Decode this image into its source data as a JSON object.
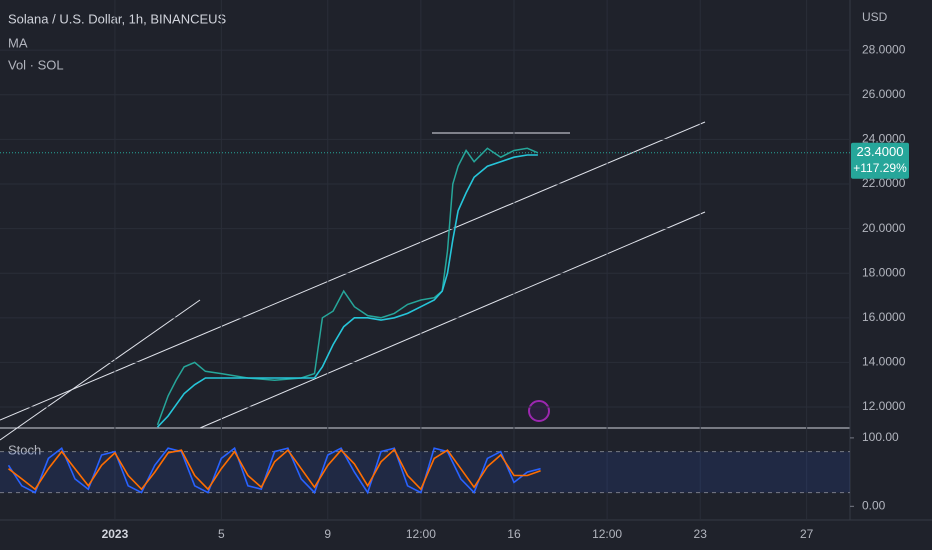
{
  "chart_data": [
    {
      "type": "line",
      "title": "Solana / U.S. Dollar, 1h, BINANCEUS",
      "indicators": [
        "MA",
        "Vol · SOL"
      ],
      "axis_label": "USD",
      "x": [
        1.6,
        2.0,
        2.3,
        2.6,
        3.0,
        3.4,
        4.0,
        5.0,
        6.0,
        7.0,
        7.5,
        7.8,
        8.2,
        8.6,
        9.0,
        9.5,
        10.0,
        10.5,
        11.0,
        11.5,
        12.0,
        12.3,
        12.5,
        12.7,
        12.9,
        13.2,
        13.5,
        14.0,
        14.5,
        15.0,
        15.5,
        15.9
      ],
      "series": [
        {
          "color": "#26a69a",
          "values": [
            11.2,
            12.5,
            13.2,
            13.8,
            14.0,
            13.6,
            13.5,
            13.3,
            13.2,
            13.3,
            13.5,
            16.0,
            16.3,
            17.2,
            16.5,
            16.1,
            16.0,
            16.2,
            16.6,
            16.8,
            16.9,
            17.2,
            19.0,
            22.0,
            22.8,
            23.5,
            23.0,
            23.6,
            23.2,
            23.5,
            23.6,
            23.4
          ]
        },
        {
          "name": "MA",
          "color": "#26c6da",
          "values": [
            11.1,
            11.6,
            12.1,
            12.6,
            13.0,
            13.3,
            13.3,
            13.3,
            13.3,
            13.3,
            13.3,
            13.8,
            14.8,
            15.6,
            16.0,
            16.0,
            15.9,
            16.0,
            16.2,
            16.5,
            16.8,
            17.2,
            18.0,
            19.5,
            20.8,
            21.6,
            22.3,
            22.8,
            23.0,
            23.2,
            23.3,
            23.3
          ]
        }
      ],
      "last_price": {
        "value": 23.4,
        "label": "23.4000"
      },
      "change_label": "+117.29%",
      "xlim": [
        -4.32,
        27.63
      ],
      "xticks": [
        {
          "value": 0,
          "label": "2023"
        },
        {
          "value": 4,
          "label": "5"
        },
        {
          "value": 8,
          "label": "9"
        },
        {
          "value": 11.5,
          "label": "12:00"
        },
        {
          "value": 15,
          "label": "16"
        },
        {
          "value": 18.5,
          "label": "12:00"
        },
        {
          "value": 22,
          "label": "23"
        },
        {
          "value": 26,
          "label": "27"
        }
      ],
      "ylim": [
        11.06,
        30.25
      ],
      "yticks": [
        {
          "value": 12,
          "label": "12.0000"
        },
        {
          "value": 14,
          "label": "14.0000"
        },
        {
          "value": 16,
          "label": "16.0000"
        },
        {
          "value": 18,
          "label": "18.0000"
        },
        {
          "value": 20,
          "label": "20.0000"
        },
        {
          "value": 22,
          "label": "22.0000"
        },
        {
          "value": 24,
          "label": "24.0000"
        },
        {
          "value": 26,
          "label": "26.0000"
        },
        {
          "value": 28,
          "label": "28.0000"
        }
      ],
      "grid": true
    },
    {
      "type": "line",
      "title": "Stoch",
      "x": [
        -4.0,
        -3.5,
        -3.0,
        -2.5,
        -2.0,
        -1.5,
        -1.0,
        -0.5,
        0.0,
        0.5,
        1.0,
        1.5,
        2.0,
        2.5,
        3.0,
        3.5,
        4.0,
        4.5,
        5.0,
        5.5,
        6.0,
        6.5,
        7.0,
        7.5,
        8.0,
        8.5,
        9.0,
        9.5,
        10.0,
        10.5,
        11.0,
        11.5,
        12.0,
        12.5,
        13.0,
        13.5,
        14.0,
        14.5,
        15.0,
        15.5,
        16.0
      ],
      "series": [
        {
          "color": "#2962ff",
          "values": [
            60,
            30,
            20,
            70,
            85,
            40,
            25,
            75,
            80,
            30,
            20,
            60,
            85,
            80,
            30,
            20,
            70,
            85,
            30,
            25,
            80,
            85,
            40,
            20,
            75,
            85,
            50,
            20,
            80,
            85,
            30,
            20,
            85,
            80,
            40,
            20,
            70,
            80,
            35,
            50,
            55
          ]
        },
        {
          "color": "#ff6d00",
          "values": [
            55,
            40,
            25,
            55,
            80,
            55,
            30,
            60,
            78,
            45,
            25,
            50,
            78,
            82,
            45,
            25,
            55,
            80,
            45,
            28,
            65,
            82,
            55,
            28,
            60,
            82,
            62,
            30,
            65,
            83,
            45,
            25,
            70,
            82,
            55,
            28,
            58,
            75,
            45,
            45,
            52
          ]
        }
      ],
      "bands": [
        20,
        80
      ],
      "ylim": [
        -20,
        113
      ],
      "yticks": [
        {
          "value": 0,
          "label": "0.00"
        },
        {
          "value": 100,
          "label": "100.00"
        }
      ]
    }
  ]
}
